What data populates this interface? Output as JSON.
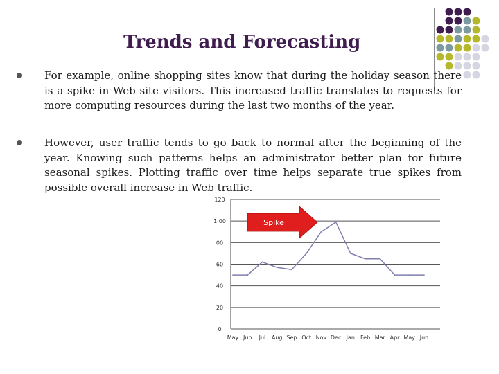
{
  "slide": {
    "title": "Trends and Forecasting",
    "bullets": [
      "For example, online shopping sites know that during the holiday season there is a spike in Web site visitors. This increased traffic translates to requests for more computing resources during the last two months of the year.",
      "However, user traffic tends to go back to normal after the beginning of the year. Knowing such patterns helps an administrator better plan for future seasonal spikes. Plotting traffic over time helps separate true spikes from possible overall increase in Web traffic."
    ]
  },
  "decor": {
    "dot_colors": [
      "#3f1d4f",
      "#7d9aa0",
      "#b5b82a",
      "#d6d6e2"
    ]
  },
  "chart_data": {
    "type": "line",
    "categories": [
      "May",
      "Jun",
      "Jul",
      "Aug",
      "Sep",
      "Oct",
      "Nov",
      "Dec",
      "Jan",
      "Feb",
      "Mar",
      "Apr",
      "May",
      "Jun"
    ],
    "series": [
      {
        "values": [
          50,
          50,
          62,
          57,
          55,
          70,
          90,
          99,
          70,
          65,
          65,
          50,
          50,
          50
        ],
        "color": "#7f7fb0"
      }
    ],
    "ylim": [
      0,
      120
    ],
    "ytick_labels": [
      "0",
      "20",
      "40",
      "60",
      "00",
      "1 00",
      "120"
    ],
    "grid": true,
    "annotation": {
      "text": "Spike",
      "color": "#e01e1e"
    }
  }
}
